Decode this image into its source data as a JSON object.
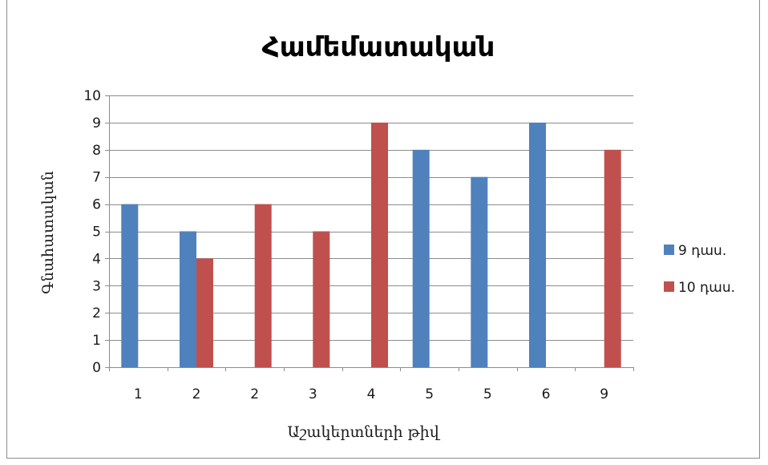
{
  "chart_data": {
    "type": "bar",
    "title": "Համեմատական",
    "xlabel": "Աշակերտների թիվ",
    "ylabel": "Գնահատական",
    "categories": [
      "1",
      "2",
      "2",
      "3",
      "4",
      "5",
      "5",
      "6",
      "9"
    ],
    "ylim": [
      0,
      10
    ],
    "yticks": [
      0,
      1,
      2,
      3,
      4,
      5,
      6,
      7,
      8,
      9,
      10
    ],
    "grid": true,
    "legend_position": "right",
    "series": [
      {
        "name": "9 դաս.",
        "color": "#4F81BD",
        "values": [
          6,
          5,
          0,
          0,
          0,
          8,
          7,
          9,
          0
        ]
      },
      {
        "name": "10 դաս.",
        "color": "#C0504D",
        "values": [
          0,
          4,
          6,
          5,
          9,
          0,
          0,
          0,
          8
        ]
      }
    ]
  }
}
